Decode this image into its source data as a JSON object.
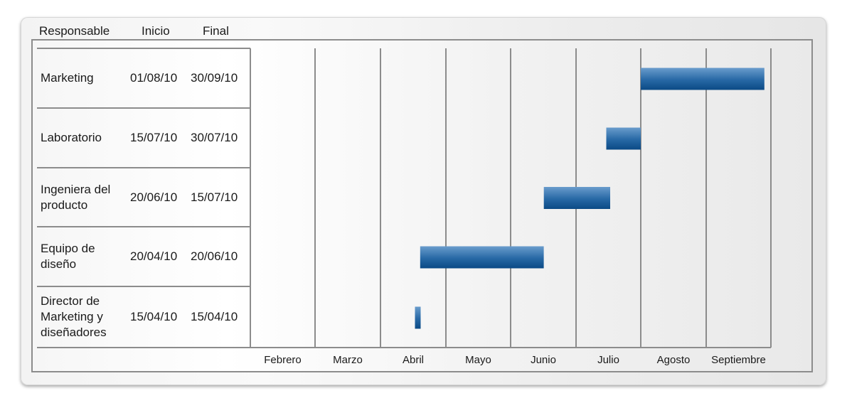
{
  "headers": {
    "responsable": "Responsable",
    "inicio": "Inicio",
    "final": "Final"
  },
  "chart_data": {
    "type": "gantt",
    "categories": [
      "Febrero",
      "Marzo",
      "Abril",
      "Mayo",
      "Junio",
      "Julio",
      "Agosto",
      "Septiembre"
    ],
    "tasks": [
      {
        "responsable": "Marketing",
        "lines": [
          "Marketing"
        ],
        "start": "01/08/10",
        "end": "30/09/10",
        "start_month": 6.0,
        "end_month": 7.9
      },
      {
        "responsable": "Laboratorio",
        "lines": [
          "Laboratorio"
        ],
        "start": "15/07/10",
        "end": "30/07/10",
        "start_month": 5.47,
        "end_month": 6.0
      },
      {
        "responsable": "Ingeniera del producto",
        "lines": [
          "Ingeniera del",
          "producto"
        ],
        "start": "20/06/10",
        "end": "15/07/10",
        "start_month": 4.51,
        "end_month": 5.53
      },
      {
        "responsable": "Equipo de diseño",
        "lines": [
          "Equipo de",
          "diseño"
        ],
        "start": "20/04/10",
        "end": "20/06/10",
        "start_month": 2.61,
        "end_month": 4.51
      },
      {
        "responsable": "Director de Marketing y diseñadores",
        "lines": [
          "Director de",
          "Marketing y",
          "diseñadores"
        ],
        "start": "15/04/10",
        "end": "15/04/10",
        "start_month": 2.53,
        "end_month": 2.6
      }
    ],
    "colors": {
      "bar_top": "#6a9ccc",
      "bar_bottom": "#0b4a85",
      "grid": "#8c8c8c"
    }
  }
}
